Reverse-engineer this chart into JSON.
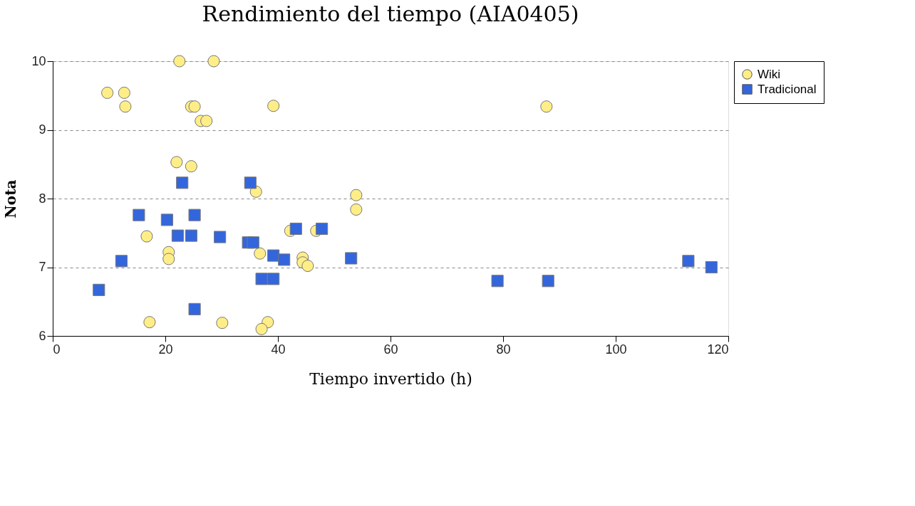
{
  "chart_data": {
    "type": "scatter",
    "title": "Rendimiento del tiempo (AIA0405)",
    "xlabel": "Tiempo invertido (h)",
    "ylabel": "Nota",
    "xlim": [
      0,
      120
    ],
    "xticks": [
      0,
      20,
      40,
      60,
      80,
      100,
      120
    ],
    "ylim": [
      6,
      10
    ],
    "yticks": [
      6,
      7,
      8,
      9,
      10
    ],
    "grid": "y",
    "legend": "right",
    "series": [
      {
        "name": "Wiki",
        "color": "#ffee88",
        "marker": "circle",
        "x": [
          9.7,
          12.7,
          12.9,
          22.5,
          28.6,
          24.6,
          25.2,
          26.3,
          27.3,
          39.2,
          22,
          24.6,
          36.1,
          53.9,
          53.9,
          16.7,
          20.6,
          20.6,
          36.8,
          44.4,
          44.4,
          45.3,
          42.2,
          46.8,
          17.2,
          30.1,
          38.2,
          37.1,
          87.7
        ],
        "values": [
          9.54,
          9.54,
          9.34,
          10,
          10,
          9.34,
          9.34,
          9.13,
          9.13,
          9.35,
          8.53,
          8.47,
          8.1,
          8.05,
          7.84,
          7.45,
          7.22,
          7.12,
          7.2,
          7.14,
          7.07,
          7.02,
          7.53,
          7.53,
          6.2,
          6.19,
          6.2,
          6.1,
          9.34
        ]
      },
      {
        "name": "Tradicional",
        "color": "#3366dd",
        "marker": "square",
        "x": [
          23,
          35.1,
          15.3,
          20.3,
          25.2,
          22.2,
          24.6,
          29.7,
          34.7,
          35.6,
          43.2,
          47.8,
          39.2,
          41.1,
          12.2,
          37.1,
          39.2,
          8.2,
          25.2,
          53,
          79,
          88,
          112.9,
          117
        ],
        "values": [
          8.23,
          8.23,
          7.76,
          7.69,
          7.76,
          7.46,
          7.46,
          7.44,
          7.36,
          7.36,
          7.56,
          7.56,
          7.17,
          7.11,
          7.09,
          6.83,
          6.83,
          6.67,
          6.39,
          7.13,
          6.8,
          6.8,
          7.09,
          7.0
        ]
      }
    ]
  }
}
